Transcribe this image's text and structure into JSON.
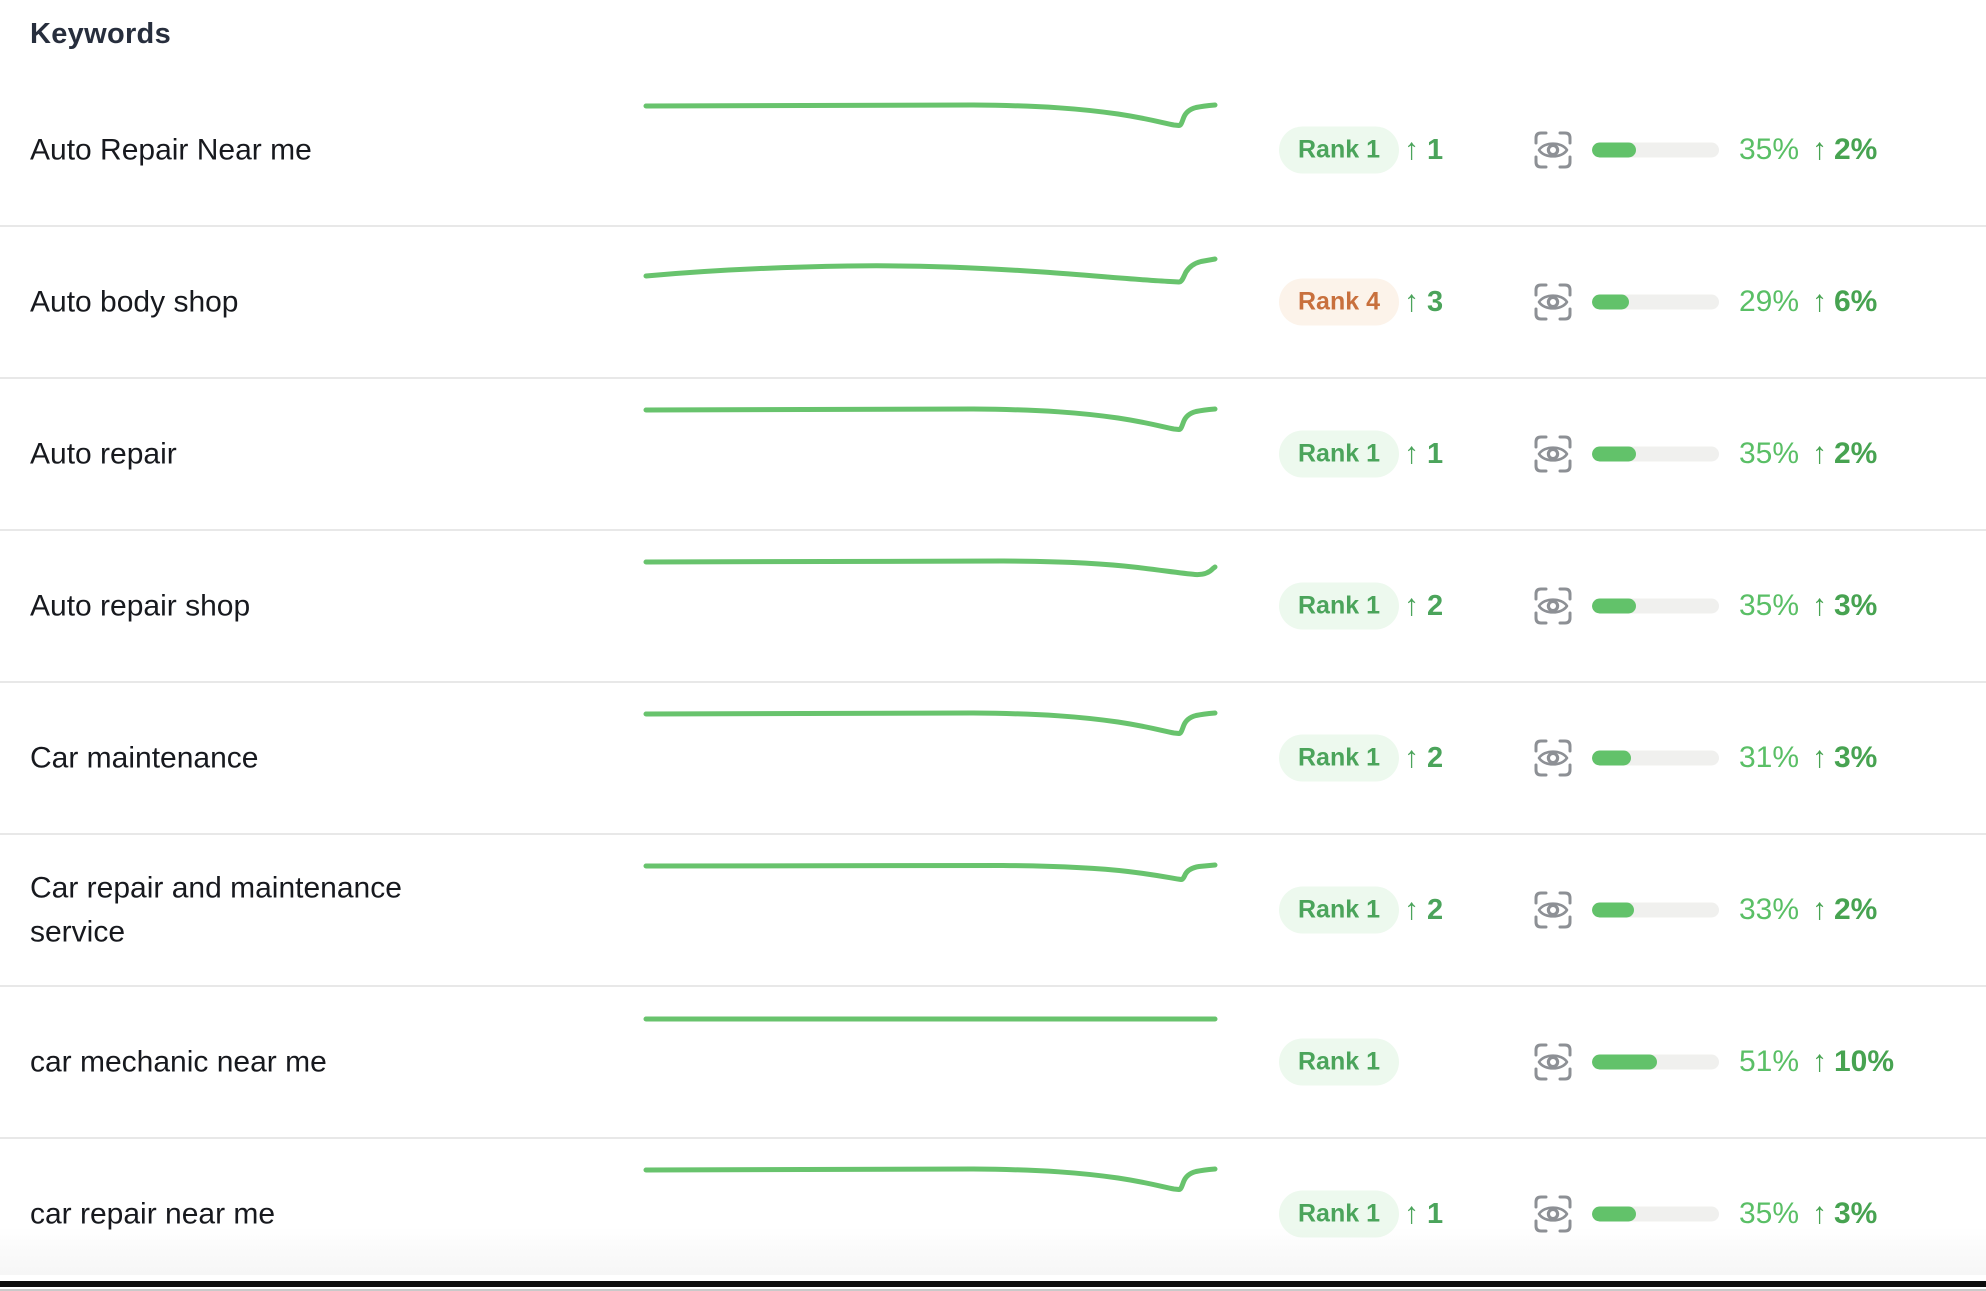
{
  "header": {
    "title": "Keywords"
  },
  "colors": {
    "sparkline_green": "#68c36d",
    "rank_green_text": "#4ba45b",
    "rank_green_bg": "#edf9ee",
    "rank_orange_text": "#c8703d",
    "rank_orange_bg": "#fcf3ea",
    "progress_fill": "#62c26a",
    "progress_track": "#f0f0ee",
    "percent_text": "#5abf66",
    "change_text": "#47a351",
    "icon_gray": "#8d9095"
  },
  "icons": {
    "visibility_icon": "eye-scan-icon",
    "up_arrow": "↑"
  },
  "rows": [
    {
      "keyword": "Auto Repair Near me",
      "rank_label": "Rank 1",
      "rank_status": "green",
      "rank_change": "1",
      "visibility_pct": "35%",
      "visibility_value": 35,
      "visibility_change": "2%",
      "trend": "flat_dip_recover"
    },
    {
      "keyword": "Auto body shop",
      "rank_label": "Rank 4",
      "rank_status": "orange",
      "rank_change": "3",
      "visibility_pct": "29%",
      "visibility_value": 29,
      "visibility_change": "6%",
      "trend": "hump_decline_recover"
    },
    {
      "keyword": "Auto repair",
      "rank_label": "Rank 1",
      "rank_status": "green",
      "rank_change": "1",
      "visibility_pct": "35%",
      "visibility_value": 35,
      "visibility_change": "2%",
      "trend": "flat_dip_recover"
    },
    {
      "keyword": "Auto repair shop",
      "rank_label": "Rank 1",
      "rank_status": "green",
      "rank_change": "2",
      "visibility_pct": "35%",
      "visibility_value": 35,
      "visibility_change": "3%",
      "trend": "flat_late_dip_hook"
    },
    {
      "keyword": "Car maintenance",
      "rank_label": "Rank 1",
      "rank_status": "green",
      "rank_change": "2",
      "visibility_pct": "31%",
      "visibility_value": 31,
      "visibility_change": "3%",
      "trend": "flat_dip_recover"
    },
    {
      "keyword": "Car repair and maintenance service",
      "rank_label": "Rank 1",
      "rank_status": "green",
      "rank_change": "2",
      "visibility_pct": "33%",
      "visibility_value": 33,
      "visibility_change": "2%",
      "trend": "flat_dip_recover_shallow"
    },
    {
      "keyword": "car mechanic near me",
      "rank_label": "Rank 1",
      "rank_status": "green",
      "rank_change": "",
      "visibility_pct": "51%",
      "visibility_value": 51,
      "visibility_change": "10%",
      "trend": "flat"
    },
    {
      "keyword": "car repair near me",
      "rank_label": "Rank 1",
      "rank_status": "green",
      "rank_change": "1",
      "visibility_pct": "35%",
      "visibility_value": 35,
      "visibility_change": "3%",
      "trend": "flat_dip_recover"
    }
  ]
}
